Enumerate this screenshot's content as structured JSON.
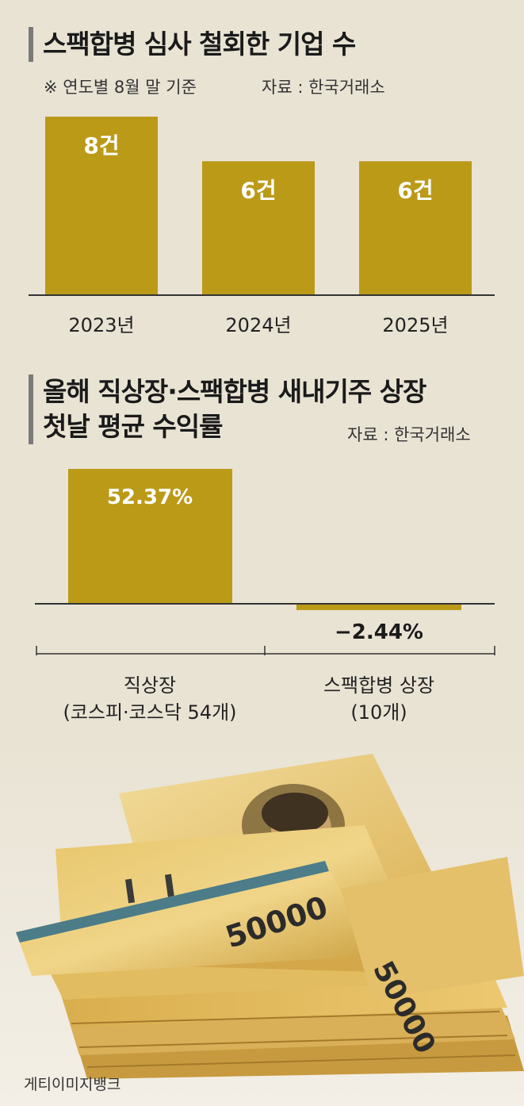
{
  "chart1": {
    "title": "스팩합병 심사 철회한 기업 수",
    "note": "※ 연도별 8월 말 기준",
    "source": "자료 : 한국거래소",
    "color": "#bb9a18",
    "chart_data": {
      "type": "bar",
      "title": "스팩합병 심사 철회한 기업 수",
      "categories": [
        "2023년",
        "2024년",
        "2025년"
      ],
      "values": [
        8,
        6,
        6
      ],
      "data_labels": [
        "8건",
        "6건",
        "6건"
      ],
      "unit": "건",
      "ylim": [
        0,
        8
      ],
      "grid": false,
      "legend": "none"
    }
  },
  "chart2": {
    "title_lines": [
      "올해 직상장·스팩합병 새내기주 상장",
      "첫날 평균 수익률"
    ],
    "source": "자료 : 한국거래소",
    "color": "#bb9a18",
    "chart_data": {
      "type": "bar",
      "title": "올해 직상장·스팩합병 새내기주 상장 첫날 평균 수익률",
      "categories": [
        [
          "직상장",
          "(코스피·코스닥 54개)"
        ],
        [
          "스팩합병 상장",
          "(10개)"
        ]
      ],
      "values": [
        52.37,
        -2.44
      ],
      "data_labels": [
        "52.37%",
        "−2.44%"
      ],
      "unit": "%",
      "ylim": [
        -2.44,
        52.37
      ],
      "grid": false,
      "legend": "none"
    }
  },
  "photo": {
    "banknote_text": "50000",
    "credit": "게티이미지뱅크"
  }
}
